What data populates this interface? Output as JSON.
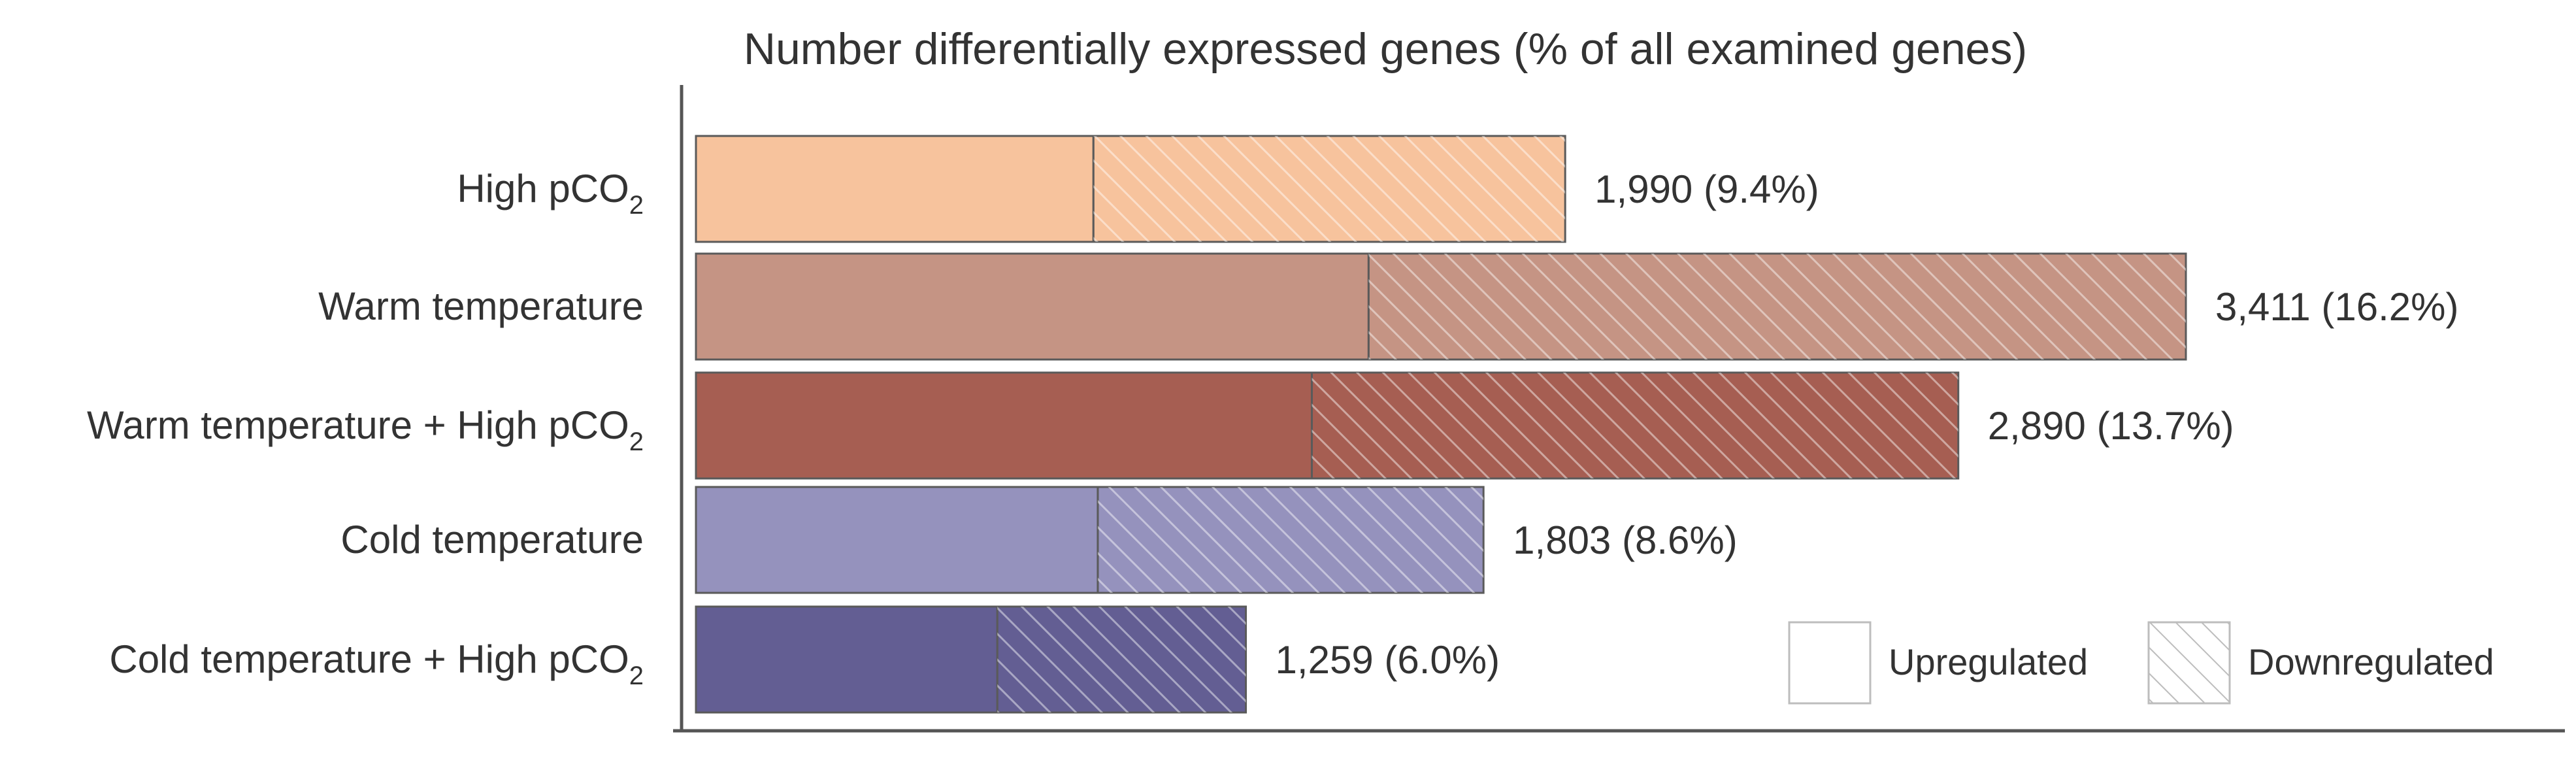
{
  "chart_data": {
    "type": "bar",
    "orientation": "horizontal",
    "stacked": true,
    "title": "Number differentially expressed genes (% of all examined genes)",
    "categories": [
      {
        "label": "High pCO",
        "subscript": "2"
      },
      {
        "label": "Warm temperature",
        "subscript": ""
      },
      {
        "label": "Warm temperature + High pCO",
        "subscript": "2"
      },
      {
        "label": "Cold temperature",
        "subscript": ""
      },
      {
        "label": "Cold temperature + High pCO",
        "subscript": "2"
      }
    ],
    "series": [
      {
        "name": "Upregulated",
        "pattern": "solid",
        "values": [
          910,
          1540,
          1410,
          920,
          690
        ]
      },
      {
        "name": "Downregulated",
        "pattern": "hatched",
        "values": [
          1080,
          1871,
          1480,
          883,
          569
        ]
      }
    ],
    "totals": [
      1990,
      3411,
      2890,
      1803,
      1259
    ],
    "value_labels": [
      "1,990 (9.4%)",
      "3,411 (16.2%)",
      "2,890 (13.7%)",
      "1,803 (8.6%)",
      "1,259 (6.0%)"
    ],
    "colors": [
      "#f7c39d",
      "#c59484",
      "#a65e52",
      "#9592bd",
      "#635e93"
    ],
    "xlim": [
      0,
      3411
    ],
    "legend_position": "bottom-right",
    "grid": false
  }
}
